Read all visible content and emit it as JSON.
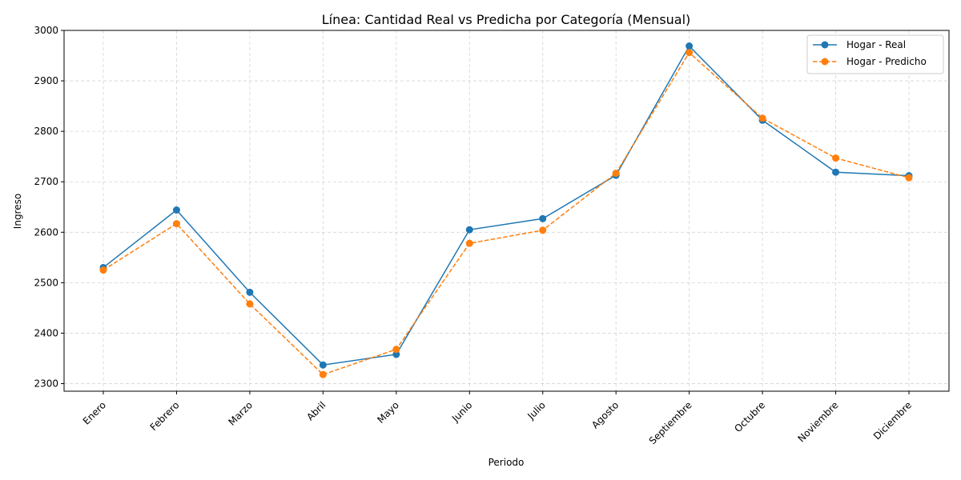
{
  "chart_data": {
    "type": "line",
    "title": "Línea: Cantidad Real vs Predicha por Categoría (Mensual)",
    "xlabel": "Periodo",
    "ylabel": "Ingreso",
    "categories": [
      "Enero",
      "Febrero",
      "Marzo",
      "Abril",
      "Mayo",
      "Junio",
      "Julio",
      "Agosto",
      "Septiembre",
      "Octubre",
      "Noviembre",
      "Diciembre"
    ],
    "ylim": [
      2285,
      3000
    ],
    "yticks": [
      2300,
      2400,
      2500,
      2600,
      2700,
      2800,
      2900,
      3000
    ],
    "grid": true,
    "legend_position": "top-right",
    "series": [
      {
        "name": "Hogar - Real",
        "color": "#1f77b4",
        "linestyle": "solid",
        "values": [
          2530,
          2644,
          2481,
          2337,
          2358,
          2605,
          2627,
          2713,
          2969,
          2822,
          2719,
          2712
        ]
      },
      {
        "name": "Hogar - Predicho",
        "color": "#ff7f0e",
        "linestyle": "dashed",
        "values": [
          2525,
          2617,
          2458,
          2318,
          2368,
          2578,
          2604,
          2717,
          2956,
          2826,
          2747,
          2708
        ]
      }
    ]
  }
}
